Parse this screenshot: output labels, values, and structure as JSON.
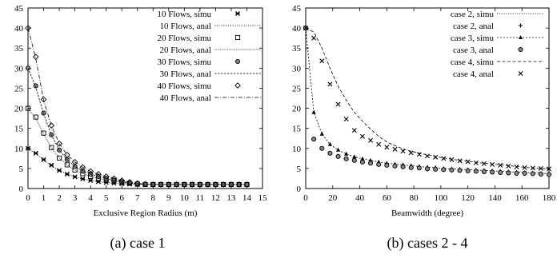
{
  "chart_data": [
    {
      "type": "line",
      "caption": "(a) case 1",
      "xlabel": "Exclusive Region Radius (m)",
      "ylabel": "",
      "xlim": [
        0,
        15
      ],
      "ylim": [
        0,
        45
      ],
      "xticks": [
        0,
        1,
        2,
        3,
        4,
        5,
        6,
        7,
        8,
        9,
        10,
        11,
        12,
        13,
        14,
        15
      ],
      "yticks": [
        0,
        5,
        10,
        15,
        20,
        25,
        30,
        35,
        40,
        45
      ],
      "legend_position": "top-right",
      "series": [
        {
          "name": "10 Flows, simu",
          "marker": "star",
          "style": "markers",
          "x": [
            0,
            0.5,
            1,
            1.5,
            2,
            2.5,
            3,
            3.5,
            4,
            4.5,
            5,
            5.5,
            6,
            6.5,
            7,
            7.5,
            8,
            8.5,
            9,
            9.5,
            10,
            10.5,
            11,
            11.5,
            12,
            12.5,
            13,
            13.5,
            14
          ],
          "y": [
            10,
            8.8,
            7.2,
            5.8,
            4.5,
            3.6,
            2.9,
            2.4,
            2.0,
            1.7,
            1.5,
            1.3,
            1.2,
            1.1,
            1.0,
            1.0,
            1.0,
            1.0,
            1.0,
            1.0,
            1.0,
            1.0,
            1.0,
            1.0,
            1.0,
            1.0,
            1.0,
            1.0,
            1.0
          ]
        },
        {
          "name": "10 Flows, anal",
          "marker": "none",
          "style": "dotted",
          "x": [
            0,
            0.5,
            1,
            1.5,
            2,
            2.5,
            3,
            3.5,
            4,
            4.5,
            5,
            5.5,
            6,
            6.5,
            7,
            7.5,
            8,
            9,
            10,
            11,
            12,
            13,
            14
          ],
          "y": [
            10,
            8.7,
            7.1,
            5.7,
            4.5,
            3.6,
            2.9,
            2.4,
            2.0,
            1.7,
            1.5,
            1.3,
            1.2,
            1.1,
            1.0,
            1.0,
            1.0,
            1.0,
            1.0,
            1.0,
            1.0,
            1.0,
            1.0
          ]
        },
        {
          "name": "20 Flows, simu",
          "marker": "square",
          "style": "markers",
          "x": [
            0,
            0.5,
            1,
            1.5,
            2,
            2.5,
            3,
            3.5,
            4,
            4.5,
            5,
            5.5,
            6,
            6.5,
            7,
            7.5,
            8,
            8.5,
            9,
            9.5,
            10,
            10.5,
            11,
            11.5,
            12,
            12.5,
            13,
            13.5,
            14
          ],
          "y": [
            20,
            17.8,
            13.8,
            10.2,
            7.6,
            5.9,
            4.6,
            3.7,
            3.0,
            2.5,
            2.1,
            1.8,
            1.5,
            1.3,
            1.1,
            1.0,
            1.0,
            1.0,
            1.0,
            1.0,
            1.0,
            1.0,
            1.0,
            1.0,
            1.0,
            1.0,
            1.0,
            1.0,
            1.0
          ]
        },
        {
          "name": "20 Flows, anal",
          "marker": "none",
          "style": "finedot",
          "x": [
            0,
            0.5,
            1,
            1.5,
            2,
            2.5,
            3,
            3.5,
            4,
            4.5,
            5,
            5.5,
            6,
            6.5,
            7,
            7.5,
            8,
            9,
            10,
            11,
            12,
            13,
            14
          ],
          "y": [
            20,
            17.5,
            13.6,
            10.1,
            7.6,
            5.9,
            4.6,
            3.7,
            3.0,
            2.5,
            2.1,
            1.8,
            1.5,
            1.3,
            1.1,
            1.0,
            1.0,
            1.0,
            1.0,
            1.0,
            1.0,
            1.0,
            1.0
          ]
        },
        {
          "name": "30 Flows, simu",
          "marker": "circle",
          "style": "markers",
          "x": [
            0,
            0.5,
            1,
            1.5,
            2,
            2.5,
            3,
            3.5,
            4,
            4.5,
            5,
            5.5,
            6,
            6.5,
            7,
            7.5,
            8,
            8.5,
            9,
            9.5,
            10,
            10.5,
            11,
            11.5,
            12,
            12.5,
            13,
            13.5,
            14
          ],
          "y": [
            30,
            25.6,
            18.8,
            13.4,
            9.6,
            7.2,
            5.5,
            4.4,
            3.6,
            3.0,
            2.5,
            2.1,
            1.7,
            1.4,
            1.2,
            1.1,
            1.0,
            1.0,
            1.0,
            1.0,
            1.0,
            1.0,
            1.0,
            1.0,
            1.0,
            1.0,
            1.0,
            1.0,
            1.0
          ]
        },
        {
          "name": "30 Flows, anal",
          "marker": "none",
          "style": "dashed-fine",
          "x": [
            0,
            0.5,
            1,
            1.5,
            2,
            2.5,
            3,
            3.5,
            4,
            4.5,
            5,
            5.5,
            6,
            6.5,
            7,
            7.5,
            8,
            9,
            10,
            11,
            12,
            13,
            14
          ],
          "y": [
            30,
            25.2,
            18.6,
            13.3,
            9.6,
            7.2,
            5.5,
            4.4,
            3.6,
            3.0,
            2.5,
            2.1,
            1.7,
            1.4,
            1.2,
            1.1,
            1.0,
            1.0,
            1.0,
            1.0,
            1.0,
            1.0,
            1.0
          ]
        },
        {
          "name": "40 Flows, simu",
          "marker": "diamond",
          "style": "markers",
          "x": [
            0,
            0.5,
            1,
            1.5,
            2,
            2.5,
            3,
            3.5,
            4,
            4.5,
            5,
            5.5,
            6,
            6.5,
            7,
            7.5,
            8,
            8.5,
            9,
            9.5,
            10,
            10.5,
            11,
            11.5,
            12,
            12.5,
            13,
            13.5,
            14
          ],
          "y": [
            40,
            32.8,
            22.2,
            15.7,
            11.2,
            8.4,
            6.6,
            5.3,
            4.3,
            3.6,
            3.0,
            2.5,
            2.0,
            1.6,
            1.3,
            1.1,
            1.0,
            1.0,
            1.0,
            1.0,
            1.0,
            1.0,
            1.0,
            1.0,
            1.0,
            1.0,
            1.0,
            1.0,
            1.0
          ]
        },
        {
          "name": "40 Flows, anal",
          "marker": "none",
          "style": "dashdot",
          "x": [
            0,
            0.5,
            1,
            1.5,
            2,
            2.5,
            3,
            3.5,
            4,
            4.5,
            5,
            5.5,
            6,
            6.5,
            7,
            7.5,
            8,
            9,
            10,
            11,
            12,
            13,
            14
          ],
          "y": [
            40,
            32.4,
            22.0,
            15.6,
            11.2,
            8.4,
            6.6,
            5.3,
            4.3,
            3.6,
            3.0,
            2.5,
            2.0,
            1.6,
            1.3,
            1.1,
            1.0,
            1.0,
            1.0,
            1.0,
            1.0,
            1.0,
            1.0
          ]
        }
      ]
    },
    {
      "type": "line",
      "caption": "(b) cases 2 - 4",
      "xlabel": "Beamwidth (degree)",
      "ylabel": "",
      "xlim": [
        0,
        180
      ],
      "ylim": [
        0,
        45
      ],
      "xticks": [
        0,
        20,
        40,
        60,
        80,
        100,
        120,
        140,
        160,
        180
      ],
      "yticks": [
        0,
        5,
        10,
        15,
        20,
        25,
        30,
        35,
        40,
        45
      ],
      "legend_position": "top-right",
      "series": [
        {
          "name": "case 2, simu",
          "marker": "none",
          "style": "dotted",
          "x": [
            0,
            1.5
          ],
          "y": [
            40,
            40
          ]
        },
        {
          "name": "case 2, anal",
          "marker": "plus",
          "style": "markers",
          "x": [
            0
          ],
          "y": [
            40
          ]
        },
        {
          "name": "case 3, simu",
          "marker": "triangle",
          "style": "markers-dashed",
          "x": [
            0,
            6,
            12,
            18,
            24,
            30,
            36,
            42,
            48,
            54,
            60,
            66,
            72,
            78,
            84,
            90,
            96,
            102,
            108,
            114,
            120,
            126,
            132,
            138,
            144,
            150,
            156,
            162,
            168,
            174,
            180
          ],
          "y": [
            40,
            19,
            13.6,
            11,
            9.6,
            8.6,
            7.9,
            7.4,
            7.0,
            6.6,
            6.3,
            6.1,
            5.9,
            5.7,
            5.5,
            5.3,
            5.2,
            5.0,
            4.9,
            4.8,
            4.7,
            4.6,
            4.5,
            4.4,
            4.3,
            4.2,
            4.1,
            4.0,
            3.9,
            3.8,
            3.7
          ]
        },
        {
          "name": "case 3, anal",
          "marker": "circle",
          "style": "markers",
          "x": [
            0,
            6,
            12,
            18,
            24,
            30,
            36,
            42,
            48,
            54,
            60,
            66,
            72,
            78,
            84,
            90,
            96,
            102,
            108,
            114,
            120,
            126,
            132,
            138,
            144,
            150,
            156,
            162,
            168,
            174,
            180
          ],
          "y": [
            40,
            12.3,
            10,
            8.8,
            8,
            7.4,
            7,
            6.6,
            6.3,
            6,
            5.8,
            5.6,
            5.4,
            5.2,
            5.1,
            4.9,
            4.8,
            4.7,
            4.6,
            4.5,
            4.4,
            4.3,
            4.2,
            4.1,
            4.0,
            3.9,
            3.8,
            3.8,
            3.7,
            3.6,
            3.5
          ]
        },
        {
          "name": "case 4, simu",
          "marker": "none",
          "style": "dashed",
          "x": [
            0,
            6,
            12,
            18,
            24,
            30,
            36,
            42,
            48,
            54,
            60,
            66,
            72,
            78,
            84,
            90,
            96,
            102,
            108,
            114,
            120,
            126,
            132,
            138,
            144,
            150,
            156,
            162,
            168,
            174,
            180
          ],
          "y": [
            40,
            39,
            35,
            30,
            25.5,
            22,
            19,
            16.8,
            14.8,
            13,
            11.6,
            10.7,
            9.9,
            9.3,
            8.8,
            8.4,
            8.0,
            7.6,
            7.3,
            7.0,
            6.8,
            6.5,
            6.3,
            6.1,
            5.9,
            5.7,
            5.5,
            5.3,
            5.1,
            5.0,
            4.9
          ]
        },
        {
          "name": "case 4, anal",
          "marker": "cross",
          "style": "markers",
          "x": [
            0,
            6,
            12,
            18,
            24,
            30,
            36,
            42,
            48,
            54,
            60,
            66,
            72,
            78,
            84,
            90,
            96,
            102,
            108,
            114,
            120,
            126,
            132,
            138,
            144,
            150,
            156,
            162,
            168,
            174,
            180
          ],
          "y": [
            40,
            37.5,
            31.8,
            26,
            21,
            17.3,
            14.5,
            13,
            12,
            11,
            10.3,
            9.8,
            9.3,
            8.9,
            8.5,
            8.1,
            7.8,
            7.5,
            7.2,
            6.9,
            6.7,
            6.4,
            6.2,
            6.0,
            5.8,
            5.6,
            5.4,
            5.2,
            5.1,
            5.0,
            4.9
          ]
        }
      ]
    }
  ]
}
